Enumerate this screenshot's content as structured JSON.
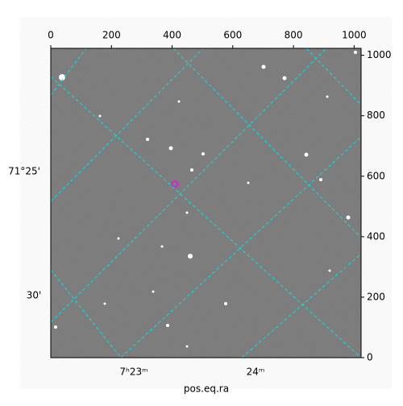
{
  "chart_data": {
    "type": "image",
    "xlabel": "pos.eq.ra",
    "xlim": [
      0,
      1023
    ],
    "xticks": [
      0,
      200,
      400,
      600,
      800,
      1000
    ],
    "ylim": [
      0,
      1023
    ],
    "yticks": [
      0,
      200,
      400,
      600,
      800,
      1000
    ],
    "dec_labels": [
      "71°25'",
      "30'"
    ],
    "ra_labels": [
      "7ʰ23ᵐ",
      "24ᵐ"
    ],
    "marker": {
      "x": 409,
      "y": 574,
      "color": "#ff00ff"
    }
  }
}
